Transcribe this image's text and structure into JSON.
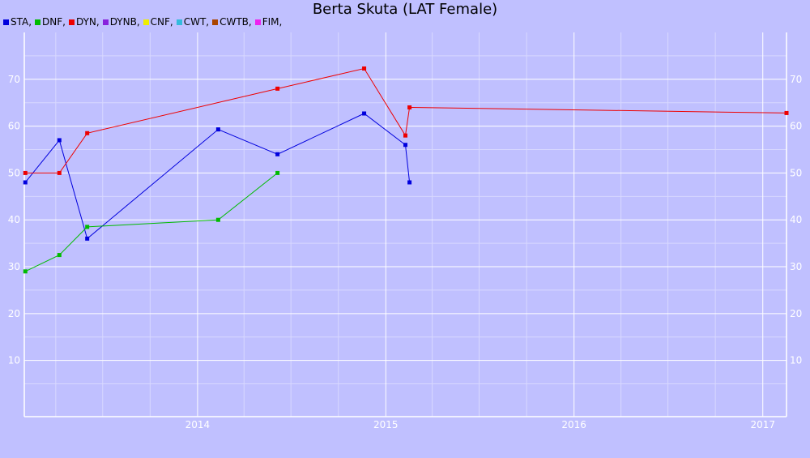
{
  "chart_data": {
    "type": "line",
    "title": "Berta Skuta (LAT Female)",
    "x_type": "date",
    "xlim": [
      "2013-01-30",
      "2017-02-16"
    ],
    "ylim": [
      -2,
      80
    ],
    "x_ticks": [
      {
        "date": "2014-01-01",
        "label": "2014"
      },
      {
        "date": "2015-01-01",
        "label": "2015"
      },
      {
        "date": "2016-01-01",
        "label": "2016"
      },
      {
        "date": "2017-01-01",
        "label": "2017"
      }
    ],
    "x_minor_gridlines": [
      "2013-04-01",
      "2013-07-01",
      "2013-10-01",
      "2014-04-01",
      "2014-07-01",
      "2014-10-01",
      "2015-04-01",
      "2015-07-01",
      "2015-10-01",
      "2016-04-01",
      "2016-07-01",
      "2016-10-01"
    ],
    "y_ticks": [
      10,
      20,
      30,
      40,
      50,
      60,
      70
    ],
    "y_minor_gridlines": [
      5,
      15,
      25,
      35,
      45,
      55,
      65,
      75
    ],
    "grid": true,
    "legend_position": "top-left",
    "legend": [
      {
        "name": "STA",
        "color": "#0000dd"
      },
      {
        "name": "DNF",
        "color": "#00bb00"
      },
      {
        "name": "DYN",
        "color": "#ee0000"
      },
      {
        "name": "DYNB",
        "color": "#8822dd"
      },
      {
        "name": "CNF",
        "color": "#eeee00"
      },
      {
        "name": "CWT",
        "color": "#33bbdd"
      },
      {
        "name": "CWTB",
        "color": "#aa4400"
      },
      {
        "name": "FIM",
        "color": "#ee22ee"
      }
    ],
    "series": [
      {
        "name": "STA",
        "color": "#0000dd",
        "points": [
          {
            "x": "2013-02-01",
            "y": 48
          },
          {
            "x": "2013-04-08",
            "y": 57
          },
          {
            "x": "2013-06-01",
            "y": 36
          },
          {
            "x": "2014-02-10",
            "y": 59.3
          },
          {
            "x": "2014-06-05",
            "y": 54
          },
          {
            "x": "2014-11-20",
            "y": 62.7
          },
          {
            "x": "2015-02-08",
            "y": 56
          },
          {
            "x": "2015-02-16",
            "y": 48
          }
        ]
      },
      {
        "name": "DNF",
        "color": "#00bb00",
        "points": [
          {
            "x": "2013-02-01",
            "y": 29
          },
          {
            "x": "2013-04-08",
            "y": 32.5
          },
          {
            "x": "2013-06-01",
            "y": 38.5
          },
          {
            "x": "2014-02-10",
            "y": 40
          },
          {
            "x": "2014-06-05",
            "y": 50
          }
        ]
      },
      {
        "name": "DYN",
        "color": "#ee0000",
        "points": [
          {
            "x": "2013-02-01",
            "y": 50
          },
          {
            "x": "2013-04-08",
            "y": 50
          },
          {
            "x": "2013-06-01",
            "y": 58.5
          },
          {
            "x": "2014-06-05",
            "y": 68
          },
          {
            "x": "2014-11-20",
            "y": 72.3
          },
          {
            "x": "2015-02-08",
            "y": 58
          },
          {
            "x": "2015-02-16",
            "y": 64
          },
          {
            "x": "2017-02-16",
            "y": 62.8
          }
        ]
      }
    ]
  }
}
